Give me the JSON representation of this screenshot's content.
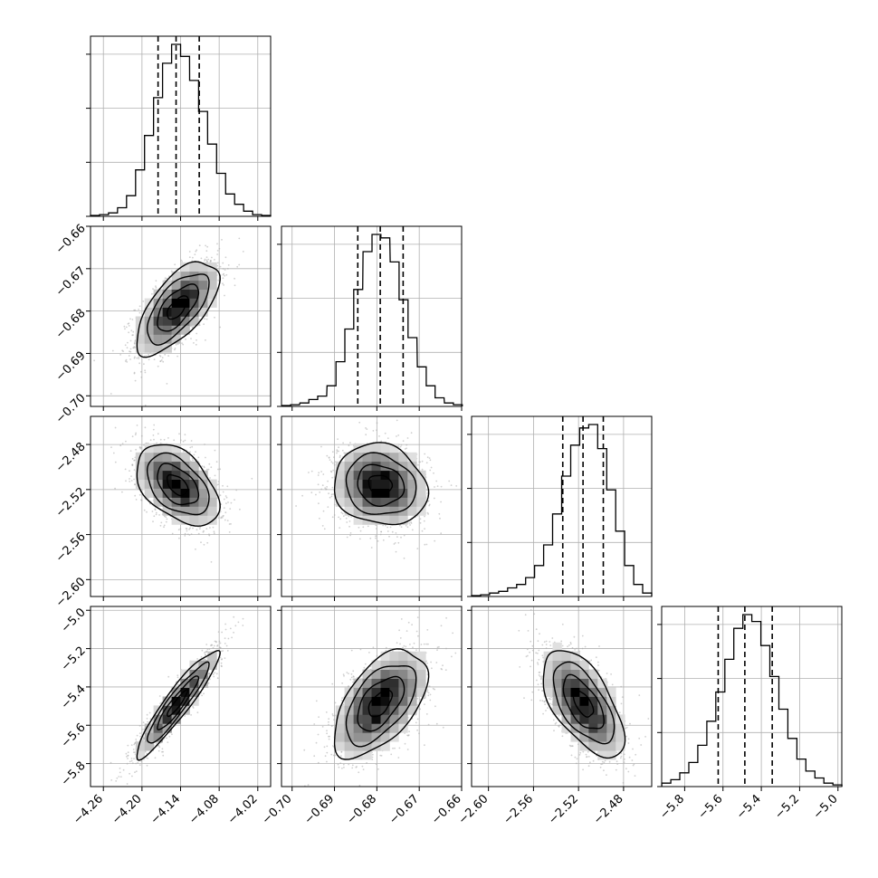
{
  "figure": {
    "background": "#ffffff",
    "frame_color": "#000000",
    "grid_color": "#b0b0b0",
    "grid": true
  },
  "chart_data": {
    "type": "corner",
    "parameters": [
      {
        "xlim": [
          -4.28,
          -4.0
        ],
        "ticks": [
          -4.26,
          -4.2,
          -4.14,
          -4.08,
          -4.02
        ],
        "tick_labels": [
          "−4.26",
          "−4.20",
          "−4.14",
          "−4.08",
          "−4.02"
        ],
        "quantiles": [
          -4.175,
          -4.147,
          -4.111
        ],
        "mean": -4.145,
        "std": 0.032,
        "histogram": {
          "bin_centers": [
            -4.273,
            -4.259,
            -4.245,
            -4.231,
            -4.217,
            -4.203,
            -4.189,
            -4.175,
            -4.161,
            -4.147,
            -4.133,
            -4.119,
            -4.105,
            -4.091,
            -4.077,
            -4.063,
            -4.049,
            -4.035,
            -4.021,
            -4.007
          ],
          "counts": [
            0.005,
            0.01,
            0.02,
            0.05,
            0.12,
            0.27,
            0.47,
            0.69,
            0.89,
            1.0,
            0.93,
            0.79,
            0.61,
            0.42,
            0.25,
            0.13,
            0.07,
            0.03,
            0.01,
            0.005
          ]
        }
      },
      {
        "xlim": [
          -0.7025,
          -0.66
        ],
        "ticks": [
          -0.7,
          -0.69,
          -0.68,
          -0.67,
          -0.66
        ],
        "tick_labels": [
          "−0.70",
          "−0.69",
          "−0.68",
          "−0.67",
          "−0.66"
        ],
        "quantiles": [
          -0.6845,
          -0.6792,
          -0.6738
        ],
        "mean": -0.6792,
        "std": 0.0055,
        "histogram": {
          "bin_centers": [
            -0.7014,
            -0.6993,
            -0.6971,
            -0.695,
            -0.6929,
            -0.6907,
            -0.6886,
            -0.6865,
            -0.6844,
            -0.6822,
            -0.6801,
            -0.678,
            -0.6758,
            -0.6737,
            -0.6716,
            -0.6694,
            -0.6673,
            -0.6652,
            -0.663,
            -0.6609
          ],
          "counts": [
            0.005,
            0.01,
            0.02,
            0.04,
            0.06,
            0.12,
            0.26,
            0.45,
            0.68,
            0.9,
            1.0,
            0.98,
            0.84,
            0.62,
            0.4,
            0.23,
            0.12,
            0.05,
            0.02,
            0.01
          ]
        }
      },
      {
        "xlim": [
          -2.615,
          -2.455
        ],
        "ticks": [
          -2.6,
          -2.56,
          -2.52,
          -2.48
        ],
        "tick_labels": [
          "−2.60",
          "−2.56",
          "−2.52",
          "−2.48"
        ],
        "quantiles": [
          -2.534,
          -2.516,
          -2.498
        ],
        "mean": -2.516,
        "std": 0.018,
        "histogram": {
          "bin_centers": [
            -2.611,
            -2.603,
            -2.595,
            -2.587,
            -2.579,
            -2.571,
            -2.563,
            -2.555,
            -2.547,
            -2.539,
            -2.531,
            -2.523,
            -2.515,
            -2.507,
            -2.499,
            -2.491,
            -2.483,
            -2.475,
            -2.467,
            -2.459
          ],
          "counts": [
            0.005,
            0.01,
            0.02,
            0.03,
            0.05,
            0.07,
            0.11,
            0.18,
            0.3,
            0.48,
            0.7,
            0.88,
            0.98,
            1.0,
            0.86,
            0.62,
            0.38,
            0.18,
            0.07,
            0.02
          ]
        }
      },
      {
        "xlim": [
          -5.92,
          -4.98
        ],
        "ticks": [
          -5.8,
          -5.6,
          -5.4,
          -5.2,
          -5.0
        ],
        "tick_labels": [
          "−5.8",
          "−5.6",
          "−5.4",
          "−5.2",
          "−5.0"
        ],
        "quantiles": [
          -5.625,
          -5.486,
          -5.343
        ],
        "mean": -5.486,
        "std": 0.14,
        "histogram": {
          "bin_centers": [
            -5.896,
            -5.849,
            -5.802,
            -5.755,
            -5.708,
            -5.661,
            -5.614,
            -5.567,
            -5.52,
            -5.473,
            -5.426,
            -5.379,
            -5.332,
            -5.285,
            -5.238,
            -5.191,
            -5.144,
            -5.097,
            -5.05,
            -5.003
          ],
          "counts": [
            0.02,
            0.04,
            0.08,
            0.14,
            0.24,
            0.38,
            0.55,
            0.74,
            0.92,
            1.0,
            0.96,
            0.82,
            0.64,
            0.45,
            0.28,
            0.16,
            0.09,
            0.05,
            0.02,
            0.01
          ]
        }
      }
    ],
    "correlations": [
      {
        "row": 1,
        "col": 0,
        "rho": 0.65
      },
      {
        "row": 2,
        "col": 0,
        "rho": -0.45
      },
      {
        "row": 2,
        "col": 1,
        "rho": -0.12
      },
      {
        "row": 3,
        "col": 0,
        "rho": 0.93
      },
      {
        "row": 3,
        "col": 1,
        "rho": 0.55
      },
      {
        "row": 3,
        "col": 2,
        "rho": -0.6
      }
    ],
    "contour_levels_sigma": [
      0.5,
      1.0,
      1.5,
      2.0
    ]
  }
}
